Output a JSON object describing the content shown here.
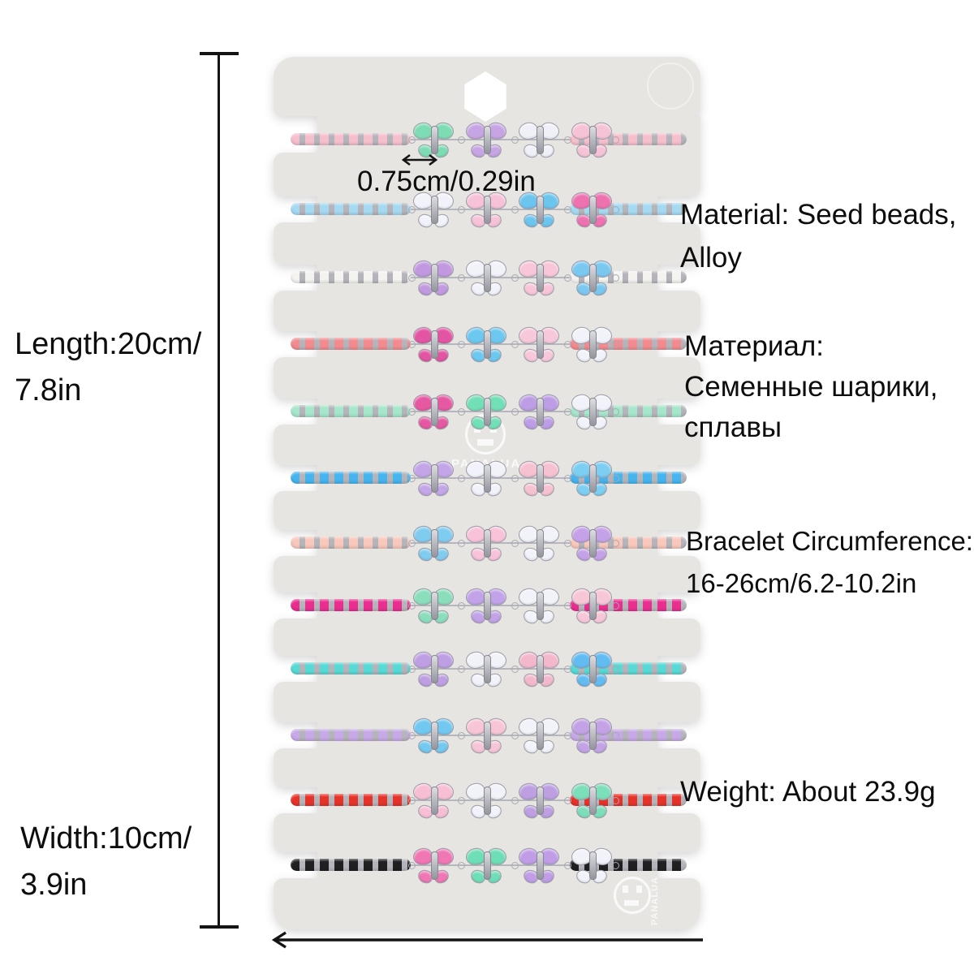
{
  "card": {
    "color": "#e6e5e2",
    "watermark_text": "PANALUA"
  },
  "annotations": {
    "bead_size_label": "0.75cm/0.29in",
    "material_en": [
      "Material: Seed beads,",
      "Alloy"
    ],
    "material_ru": [
      "Материал:",
      "Семенные шарики,",
      "сплавы"
    ],
    "circumference": [
      "Bracelet Circumference:",
      "16-26cm/6.2-10.2in"
    ],
    "weight": "Weight: About 23.9g",
    "length": [
      "Length:20cm/",
      "7.8in"
    ],
    "width": [
      "Width:10cm/",
      "3.9in"
    ]
  },
  "bracelets": [
    {
      "bead_color": "#f6bfcc",
      "accent_color": "#b4b4ba",
      "butterfly_colors": [
        "#7edcb4",
        "#c7a4e4",
        "#f0f0f8",
        "#f6c3d6"
      ]
    },
    {
      "bead_color": "#a5d9f2",
      "accent_color": "#b4b4ba",
      "butterfly_colors": [
        "#f2f2fa",
        "#f7c2d8",
        "#6cc5ee",
        "#ee72b0"
      ]
    },
    {
      "bead_color": "#f4f3f0",
      "accent_color": "#b4b4ba",
      "butterfly_colors": [
        "#c299e0",
        "#f2f2fa",
        "#f8c6d8",
        "#7ac8f0"
      ]
    },
    {
      "bead_color": "#f28b90",
      "accent_color": "#b4b4ba",
      "butterfly_colors": [
        "#e354a2",
        "#6cc8f0",
        "#f7c8da",
        "#f2f2fa"
      ]
    },
    {
      "bead_color": "#a6e6cb",
      "accent_color": "#b4b4ba",
      "butterfly_colors": [
        "#e658a2",
        "#72e0b6",
        "#bd9ee6",
        "#f2f2fa"
      ]
    },
    {
      "bead_color": "#46b4ee",
      "accent_color": "#b4b4ba",
      "butterfly_colors": [
        "#c4a6e8",
        "#f2f2fa",
        "#f6c2d2",
        "#7ccef2"
      ]
    },
    {
      "bead_color": "#f8c8bc",
      "accent_color": "#b4b4ba",
      "butterfly_colors": [
        "#80ccf0",
        "#f8c2d8",
        "#f2f2fa",
        "#c5a2e8"
      ]
    },
    {
      "bead_color": "#ea2e90",
      "accent_color": "#b4b4ba",
      "butterfly_colors": [
        "#8adebc",
        "#c2a2e8",
        "#f2f2fa",
        "#f7c7d8"
      ]
    },
    {
      "bead_color": "#57d9d6",
      "accent_color": "#b4b4ba",
      "butterfly_colors": [
        "#bf9fe4",
        "#f2f2fa",
        "#f4b8cc",
        "#62bcf2"
      ]
    },
    {
      "bead_color": "#c8a9e8",
      "accent_color": "#b4b4ba",
      "butterfly_colors": [
        "#72c8f0",
        "#f8c5d6",
        "#f2f2fa",
        "#c3a3e6"
      ]
    },
    {
      "bead_color": "#e6332a",
      "accent_color": "#b4b4ba",
      "butterfly_colors": [
        "#f7bed4",
        "#f2f2fa",
        "#bd9fe2",
        "#7ddeba"
      ]
    },
    {
      "bead_color": "#202022",
      "accent_color": "#b4b4ba",
      "butterfly_colors": [
        "#f076b4",
        "#6ddeb6",
        "#c09de6",
        "#f2f2fa"
      ]
    }
  ]
}
